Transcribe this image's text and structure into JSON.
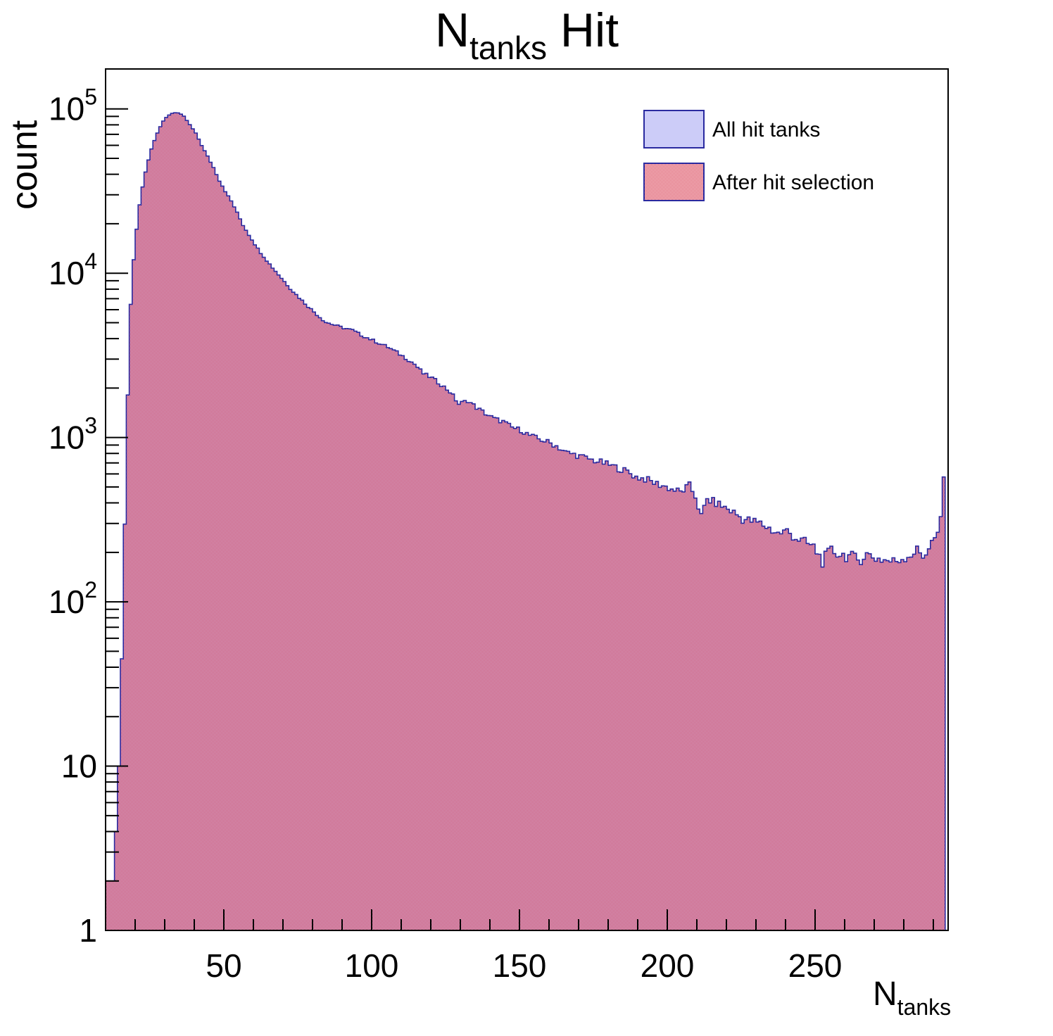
{
  "title": {
    "main": "N",
    "subscript": "tanks",
    "suffix": " Hit"
  },
  "axes": {
    "x": {
      "label_main": "N",
      "label_subscript": "tanks",
      "min": 10,
      "max": 295,
      "major_tick_labels": [
        50,
        100,
        150,
        200,
        250
      ],
      "minor_tick_step": 10,
      "major_tick_step": 50
    },
    "y": {
      "label": "count",
      "scale": "log",
      "min": 1,
      "max": 175000,
      "decade_labels": [
        {
          "text": "1",
          "exp": "",
          "value": 1
        },
        {
          "text": "10",
          "exp": "",
          "value": 10
        },
        {
          "text": "10",
          "exp": "2",
          "value": 100
        },
        {
          "text": "10",
          "exp": "3",
          "value": 1000
        },
        {
          "text": "10",
          "exp": "4",
          "value": 10000
        },
        {
          "text": "10",
          "exp": "5",
          "value": 100000
        }
      ]
    }
  },
  "legend": {
    "items": [
      {
        "label": "All hit tanks",
        "swatch": "solid",
        "fill": "#ccccf8",
        "border": "#2a2aa0"
      },
      {
        "label": "After hit selection",
        "swatch": "checker",
        "hatch_color": "#d62f45",
        "border": "#2a2aa0"
      }
    ]
  },
  "colors": {
    "frame": "#000000",
    "hist_outline": "#2a2aa0",
    "hist_fill_all": "#ccccf8",
    "hatch_red": "#d62f45",
    "text": "#000000",
    "background": "#ffffff"
  },
  "chart_data": {
    "type": "bar",
    "subtype": "histogram-log-y",
    "title": "N_{tanks} Hit",
    "xlabel": "N_{tanks}",
    "ylabel": "count",
    "x_range": [
      10,
      295
    ],
    "bin_width": 1,
    "y_scale": "log",
    "ylim": [
      1,
      175000
    ],
    "grid": false,
    "legend_position": "top-right-inside",
    "peak": {
      "n": 33,
      "count": 95000
    },
    "last_bin_spike": {
      "n": 293,
      "count": 575
    },
    "series": [
      {
        "name": "All hit tanks",
        "style": "solid lavender fill, navy outline"
      },
      {
        "name": "After hit selection",
        "style": "fine red checker hatch, navy outline",
        "note": "overlaps series 0 almost exactly over the full range"
      }
    ],
    "profile_anchors": [
      [
        10,
        2
      ],
      [
        12,
        2
      ],
      [
        13,
        4
      ],
      [
        14,
        10
      ],
      [
        15,
        45
      ],
      [
        16,
        300
      ],
      [
        17,
        1800
      ],
      [
        18,
        6500
      ],
      [
        19,
        12000
      ],
      [
        20,
        18500
      ],
      [
        21,
        26000
      ],
      [
        22,
        33500
      ],
      [
        23,
        41500
      ],
      [
        24,
        49000
      ],
      [
        25,
        57000
      ],
      [
        26,
        64500
      ],
      [
        27,
        71500
      ],
      [
        28,
        78000
      ],
      [
        29,
        84000
      ],
      [
        30,
        88500
      ],
      [
        31,
        92000
      ],
      [
        32,
        94000
      ],
      [
        33,
        95000
      ],
      [
        34,
        94500
      ],
      [
        35,
        92500
      ],
      [
        36,
        90000
      ],
      [
        37,
        85000
      ],
      [
        38,
        80000
      ],
      [
        39,
        75500
      ],
      [
        40,
        71000
      ],
      [
        41,
        65500
      ],
      [
        42,
        60000
      ],
      [
        43,
        55500
      ],
      [
        44,
        51500
      ],
      [
        45,
        47500
      ],
      [
        46,
        44000
      ],
      [
        47,
        40000
      ],
      [
        48,
        36500
      ],
      [
        49,
        34000
      ],
      [
        50,
        31500
      ],
      [
        52,
        27500
      ],
      [
        54,
        23400
      ],
      [
        56,
        19600
      ],
      [
        58,
        17100
      ],
      [
        60,
        15000
      ],
      [
        62,
        13300
      ],
      [
        64,
        11950
      ],
      [
        66,
        10800
      ],
      [
        68,
        9800
      ],
      [
        70,
        8900
      ],
      [
        72,
        8070
      ],
      [
        74,
        7400
      ],
      [
        76,
        6820
      ],
      [
        78,
        6280
      ],
      [
        80,
        5820
      ],
      [
        82,
        5400
      ],
      [
        84,
        5030
      ],
      [
        86,
        4900
      ],
      [
        89,
        4700
      ],
      [
        93,
        4500
      ],
      [
        96,
        4200
      ],
      [
        100,
        3900
      ],
      [
        105,
        3550
      ],
      [
        108,
        3300
      ],
      [
        111,
        3050
      ],
      [
        114,
        2800
      ],
      [
        117,
        2450
      ],
      [
        120,
        2300
      ],
      [
        123,
        2100
      ],
      [
        126,
        1900
      ],
      [
        129,
        1600
      ],
      [
        132,
        1680
      ],
      [
        135,
        1520
      ],
      [
        138,
        1400
      ],
      [
        141,
        1300
      ],
      [
        144,
        1250
      ],
      [
        147,
        1150
      ],
      [
        150,
        1110
      ],
      [
        153,
        1030
      ],
      [
        156,
        980
      ],
      [
        159,
        940
      ],
      [
        162,
        890
      ],
      [
        165,
        815
      ],
      [
        168,
        790
      ],
      [
        171,
        760
      ],
      [
        174,
        730
      ],
      [
        177,
        708
      ],
      [
        180,
        680
      ],
      [
        183,
        650
      ],
      [
        186,
        620
      ],
      [
        189,
        575
      ],
      [
        192,
        560
      ],
      [
        195,
        530
      ],
      [
        198,
        510
      ],
      [
        201,
        485
      ],
      [
        204,
        465
      ],
      [
        207,
        510
      ],
      [
        209,
        440
      ],
      [
        211,
        330
      ],
      [
        213,
        420
      ],
      [
        216,
        400
      ],
      [
        219,
        375
      ],
      [
        222,
        350
      ],
      [
        225,
        320
      ],
      [
        228,
        310
      ],
      [
        231,
        300
      ],
      [
        234,
        280
      ],
      [
        237,
        260
      ],
      [
        240,
        270
      ],
      [
        243,
        245
      ],
      [
        246,
        230
      ],
      [
        249,
        215
      ],
      [
        252,
        178
      ],
      [
        255,
        205
      ],
      [
        258,
        195
      ],
      [
        261,
        190
      ],
      [
        264,
        180
      ],
      [
        267,
        195
      ],
      [
        270,
        185
      ],
      [
        273,
        180
      ],
      [
        276,
        175
      ],
      [
        279,
        185
      ],
      [
        282,
        195
      ],
      [
        284,
        205
      ],
      [
        286,
        190
      ],
      [
        288,
        215
      ],
      [
        290,
        245
      ],
      [
        291,
        265
      ],
      [
        292,
        330
      ],
      [
        293,
        575
      ]
    ]
  }
}
